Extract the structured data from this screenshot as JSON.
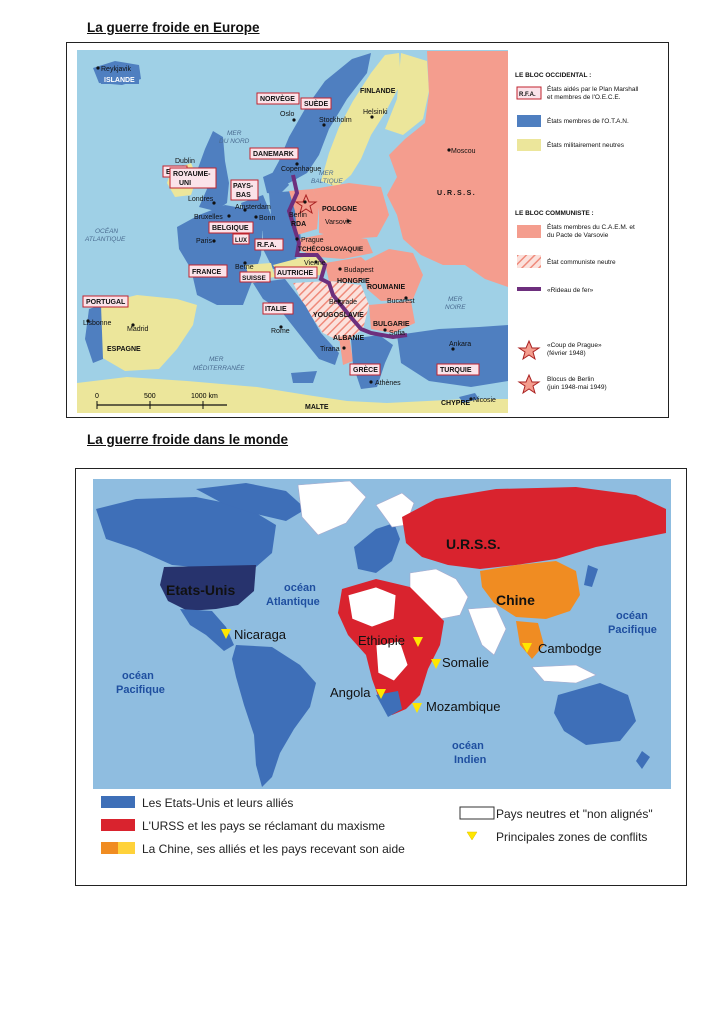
{
  "titles": {
    "europe": "La guerre froide en Europe",
    "world": "La guerre froide dans le monde"
  },
  "colors": {
    "sea_europe": "#9fd0e6",
    "oece": "#fbe3ea",
    "otan": "#4f7fc0",
    "neutral_europe": "#ece69b",
    "comecon": "#f49d8e",
    "iron_curtain": "#6d2f7d",
    "ocean_world": "#8fbde0",
    "us_allies": "#3e6fb8",
    "ussr_allies": "#d9232e",
    "china_allies": "#f08c22",
    "conflict": "#ffe600"
  },
  "europe": {
    "labels": {
      "reykjavik": "Reykjavik",
      "islande": "ISLANDE",
      "norvege": "NORVÈGE",
      "suede": "SUÈDE",
      "finlande": "FINLANDE",
      "oslo": "Oslo",
      "stockholm": "Stockholm",
      "helsinki": "Helsinki",
      "mer_du_nord": "MER\nDU NORD",
      "mer_baltique": "MER\nBALTIQUE",
      "danemark": "DANEMARK",
      "copenhague": "Copenhague",
      "dublin": "Dublin",
      "eire": "EIRE",
      "royaume_uni": "ROYAUME-\nUNI",
      "pays_bas": "PAYS-\nBAS",
      "londres": "Londres",
      "amsterdam": "Amsterdam",
      "bruxelles": "Bruxelles",
      "bonn": "Bonn",
      "belgique": "BELGIQUE",
      "lux": "LUX",
      "berlin": "Berlin",
      "rda": "RDA",
      "rfa": "R.F.A.",
      "pologne": "POLOGNE",
      "varsovie": "Varsovie",
      "moscou": "Moscou",
      "urss": "U.R.S.S.",
      "ocean_atlantique": "OCÉAN\nATLANTIQUE",
      "paris": "Paris",
      "prague": "Prague",
      "tchecoslovaquie": "TCHÉCOSLOVAQUIE",
      "vienne": "Vienne",
      "autriche": "AUTRICHE",
      "berne": "Berne",
      "suisse": "SUISSE",
      "budapest": "Budapest",
      "hongrie": "HONGRIE",
      "roumanie": "ROUMANIE",
      "france": "FRANCE",
      "belgrade": "Belgrade",
      "bucarest": "Bucarest",
      "yougoslavie": "YOUGOSLAVIE",
      "mer_noire": "MER\nNOIRE",
      "portugal": "PORTUGAL",
      "italie": "ITALIE",
      "bulgarie": "BULGARIE",
      "sofia": "Sofia",
      "lisbonne": "Lisbonne",
      "madrid": "Madrid",
      "rome": "Rome",
      "albanie": "ALBANIE",
      "tirana": "Tirana",
      "espagne": "ESPAGNE",
      "ankara": "Ankara",
      "grece": "GRÈCE",
      "turquie": "TURQUIE",
      "mer_mediterranee": "MER\nMÉDITERRANÉE",
      "athenes": "Athènes",
      "malte": "MALTE",
      "chypre": "CHYPRE",
      "nicosie": "Nicosie"
    },
    "scale": [
      "0",
      "500",
      "1000 km"
    ],
    "legend": {
      "bloc_occidental": "LE BLOC OCCIDENTAL :",
      "oece_badge": "R.F.A.",
      "oece": "États aidés par le Plan Marshall\net membres de l'O.E.C.E.",
      "otan": "États membres de l'O.T.A.N.",
      "neutres": "États militairement neutres",
      "bloc_communiste": "LE BLOC COMMUNISTE :",
      "caem": "États membres du C.A.E.M. et\ndu Pacte de Varsovie",
      "etat_neutre": "État communiste neutre",
      "rideau": "«Rideau de fer»",
      "prague_coup": "«Coup de Prague»\n(février 1948)",
      "blocus": "Blocus de Berlin\n(juin 1948-mai 1949)"
    }
  },
  "world": {
    "labels": {
      "urss": "U.R.S.S.",
      "etats_unis": "Etats-Unis",
      "chine": "Chine",
      "ocean_atlantique": "océan\nAtlantique",
      "ocean_pacifique_e": "océan\nPacifique",
      "ocean_pacifique_w": "océan\nPacifique",
      "ocean_indien": "océan\nIndien",
      "nicaragua": "Nicaraga",
      "ethiopie": "Ethiopie",
      "somalie": "Somalie",
      "cambodge": "Cambodge",
      "angola": "Angola",
      "mozambique": "Mozambique"
    },
    "legend": {
      "us": "Les Etats-Unis et leurs alliés",
      "urss": "L'URSS et les pays se réclamant du maxisme",
      "chine": "La Chine, ses alliés et les pays recevant son aide",
      "neutres": "Pays neutres et \"non alignés\"",
      "conflits": "Principales zones de conflits"
    }
  }
}
